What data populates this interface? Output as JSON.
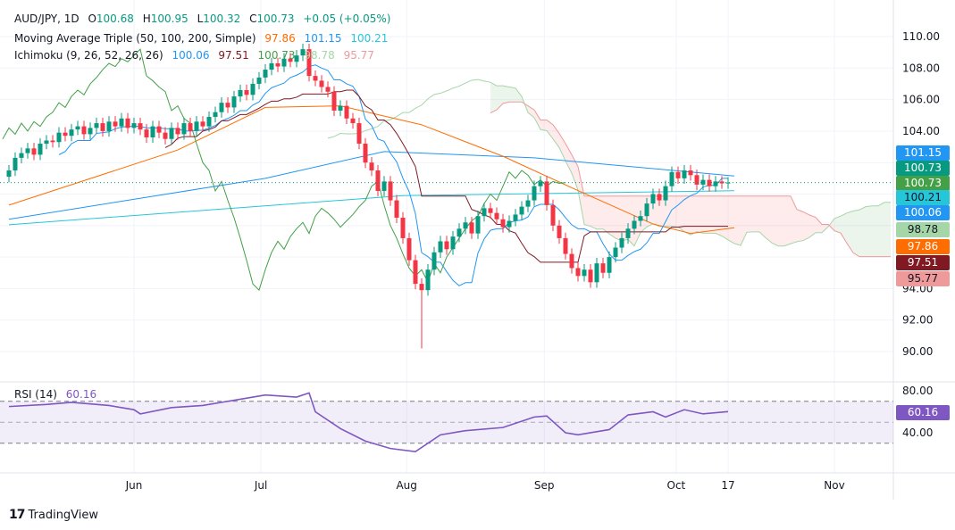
{
  "header": {
    "symbol": "AUD/JPY, 1D",
    "o_label": "O",
    "o": "100.68",
    "h_label": "H",
    "h": "100.95",
    "l_label": "L",
    "l": "100.32",
    "c_label": "C",
    "c": "100.73",
    "change": "+0.05 (+0.05%)"
  },
  "ma_legend": {
    "name": "Moving Average Triple (50, 100, 200, Simple)",
    "v50": "97.86",
    "v100": "101.15",
    "v200": "100.21"
  },
  "ichi_legend": {
    "name": "Ichimoku (9, 26, 52, 26, 26)",
    "tenkan": "100.06",
    "kijun": "97.51",
    "lagging": "100.73",
    "spanA": "98.78",
    "spanB": "95.77"
  },
  "rsi_legend": {
    "name": "RSI (14)",
    "value": "60.16"
  },
  "price_labels": [
    {
      "text": "101.15",
      "bg": "#2196f3",
      "fg": "#fff"
    },
    {
      "text": "100.73",
      "bg": "#089981",
      "fg": "#fff"
    },
    {
      "text": "100.73",
      "bg": "#43a047",
      "fg": "#fff"
    },
    {
      "text": "100.21",
      "bg": "#26c6da",
      "fg": "#131722"
    },
    {
      "text": "100.06",
      "bg": "#2196f3",
      "fg": "#fff"
    },
    {
      "text": "98.78",
      "bg": "#a5d6a7",
      "fg": "#131722"
    },
    {
      "text": "97.86",
      "bg": "#ff6d00",
      "fg": "#fff"
    },
    {
      "text": "97.51",
      "bg": "#801922",
      "fg": "#fff"
    },
    {
      "text": "95.77",
      "bg": "#ef9a9a",
      "fg": "#131722"
    }
  ],
  "rsi_label": {
    "text": "60.16",
    "bg": "#7e57c2"
  },
  "brand": "TradingView",
  "colors": {
    "up": "#089981",
    "down": "#f23645",
    "ma50": "#ff6d00",
    "ma100": "#2196f3",
    "ma200": "#26c6da",
    "tenkan": "#2196f3",
    "kijun": "#801922",
    "lagging": "#43a047",
    "rsi": "#7e57c2"
  },
  "chart_data": {
    "type": "candlestick",
    "title": "AUD/JPY, 1D",
    "ylim": [
      89,
      111
    ],
    "y_ticks": [
      "110.00",
      "108.00",
      "106.00",
      "104.00",
      "94.00",
      "92.00",
      "90.00"
    ],
    "y_tick_values": [
      110,
      108,
      106,
      104,
      94,
      92,
      90
    ],
    "x_ticks": [
      {
        "label": "Jun",
        "bar": 20
      },
      {
        "label": "Jul",
        "bar": 40.3
      },
      {
        "label": "Aug",
        "bar": 63.6
      },
      {
        "label": "Sep",
        "bar": 85.6
      },
      {
        "label": "Oct",
        "bar": 106.7
      },
      {
        "label": "17",
        "bar": 115
      },
      {
        "label": "Nov",
        "bar": 132
      }
    ],
    "closes": [
      101.5,
      102.3,
      102.6,
      102.9,
      102.5,
      103.2,
      103.4,
      103.3,
      103.9,
      103.7,
      104.1,
      104.3,
      103.8,
      104.2,
      104.5,
      104.0,
      104.6,
      104.3,
      104.8,
      104.2,
      104.5,
      104.1,
      103.6,
      104.3,
      103.9,
      103.5,
      104.2,
      103.8,
      104.5,
      104.0,
      104.6,
      104.3,
      104.9,
      105.2,
      105.8,
      105.5,
      106.2,
      106.6,
      106.3,
      107.0,
      107.4,
      107.9,
      108.3,
      108.1,
      108.6,
      108.4,
      108.8,
      109.2,
      107.5,
      107.2,
      106.8,
      106.5,
      105.3,
      105.6,
      104.8,
      104.5,
      103.2,
      102.0,
      101.5,
      100.2,
      100.8,
      99.6,
      98.5,
      97.2,
      95.8,
      94.3,
      93.9,
      95.2,
      96.3,
      97.0,
      96.5,
      97.3,
      97.8,
      98.2,
      97.5,
      98.6,
      99.1,
      98.8,
      98.4,
      97.9,
      98.3,
      98.7,
      99.2,
      99.6,
      100.5,
      100.8,
      99.3,
      98.0,
      97.2,
      96.2,
      95.3,
      94.8,
      95.2,
      94.4,
      95.6,
      95.0,
      96.0,
      96.6,
      97.2,
      97.8,
      98.3,
      98.6,
      99.4,
      100.0,
      99.6,
      100.5,
      101.4,
      101.0,
      101.5,
      101.2,
      100.6,
      100.9,
      100.5,
      100.8,
      100.68,
      100.73
    ],
    "low_overrides": {
      "66": 90.2
    },
    "last_close": 100.73,
    "ma200": [
      [
        0,
        98.05
      ],
      [
        63,
        99.9
      ],
      [
        116,
        100.21
      ]
    ],
    "ma100": [
      [
        0,
        98.4
      ],
      [
        41,
        101
      ],
      [
        60,
        102.7
      ],
      [
        84,
        102.3
      ],
      [
        116,
        101.15
      ]
    ],
    "ma50": [
      [
        0,
        99.3
      ],
      [
        27,
        102.8
      ],
      [
        41,
        105.5
      ],
      [
        53,
        105.6
      ],
      [
        66,
        104.4
      ],
      [
        79,
        102.4
      ],
      [
        90,
        100.4
      ],
      [
        103,
        98.1
      ],
      [
        109,
        97.5
      ],
      [
        116,
        97.86
      ]
    ],
    "rsi": {
      "ylim": [
        20,
        90
      ],
      "levels": [
        70,
        30
      ],
      "ticks": [
        "80.00",
        "40.00"
      ],
      "tick_values": [
        80,
        40
      ],
      "points": [
        [
          0,
          65
        ],
        [
          6,
          67
        ],
        [
          10,
          69
        ],
        [
          16,
          66
        ],
        [
          20,
          62
        ],
        [
          21,
          58
        ],
        [
          26,
          64
        ],
        [
          31,
          66
        ],
        [
          37,
          72
        ],
        [
          41,
          76
        ],
        [
          46,
          74
        ],
        [
          48,
          78
        ],
        [
          49,
          60
        ],
        [
          53,
          44
        ],
        [
          57,
          32
        ],
        [
          61,
          25
        ],
        [
          65,
          22
        ],
        [
          69,
          38
        ],
        [
          73,
          42
        ],
        [
          79,
          45
        ],
        [
          84,
          55
        ],
        [
          86,
          56
        ],
        [
          89,
          40
        ],
        [
          91,
          38
        ],
        [
          96,
          43
        ],
        [
          99,
          57
        ],
        [
          103,
          60
        ],
        [
          105,
          55
        ],
        [
          108,
          62
        ],
        [
          111,
          58
        ],
        [
          115,
          60.16
        ]
      ]
    }
  }
}
